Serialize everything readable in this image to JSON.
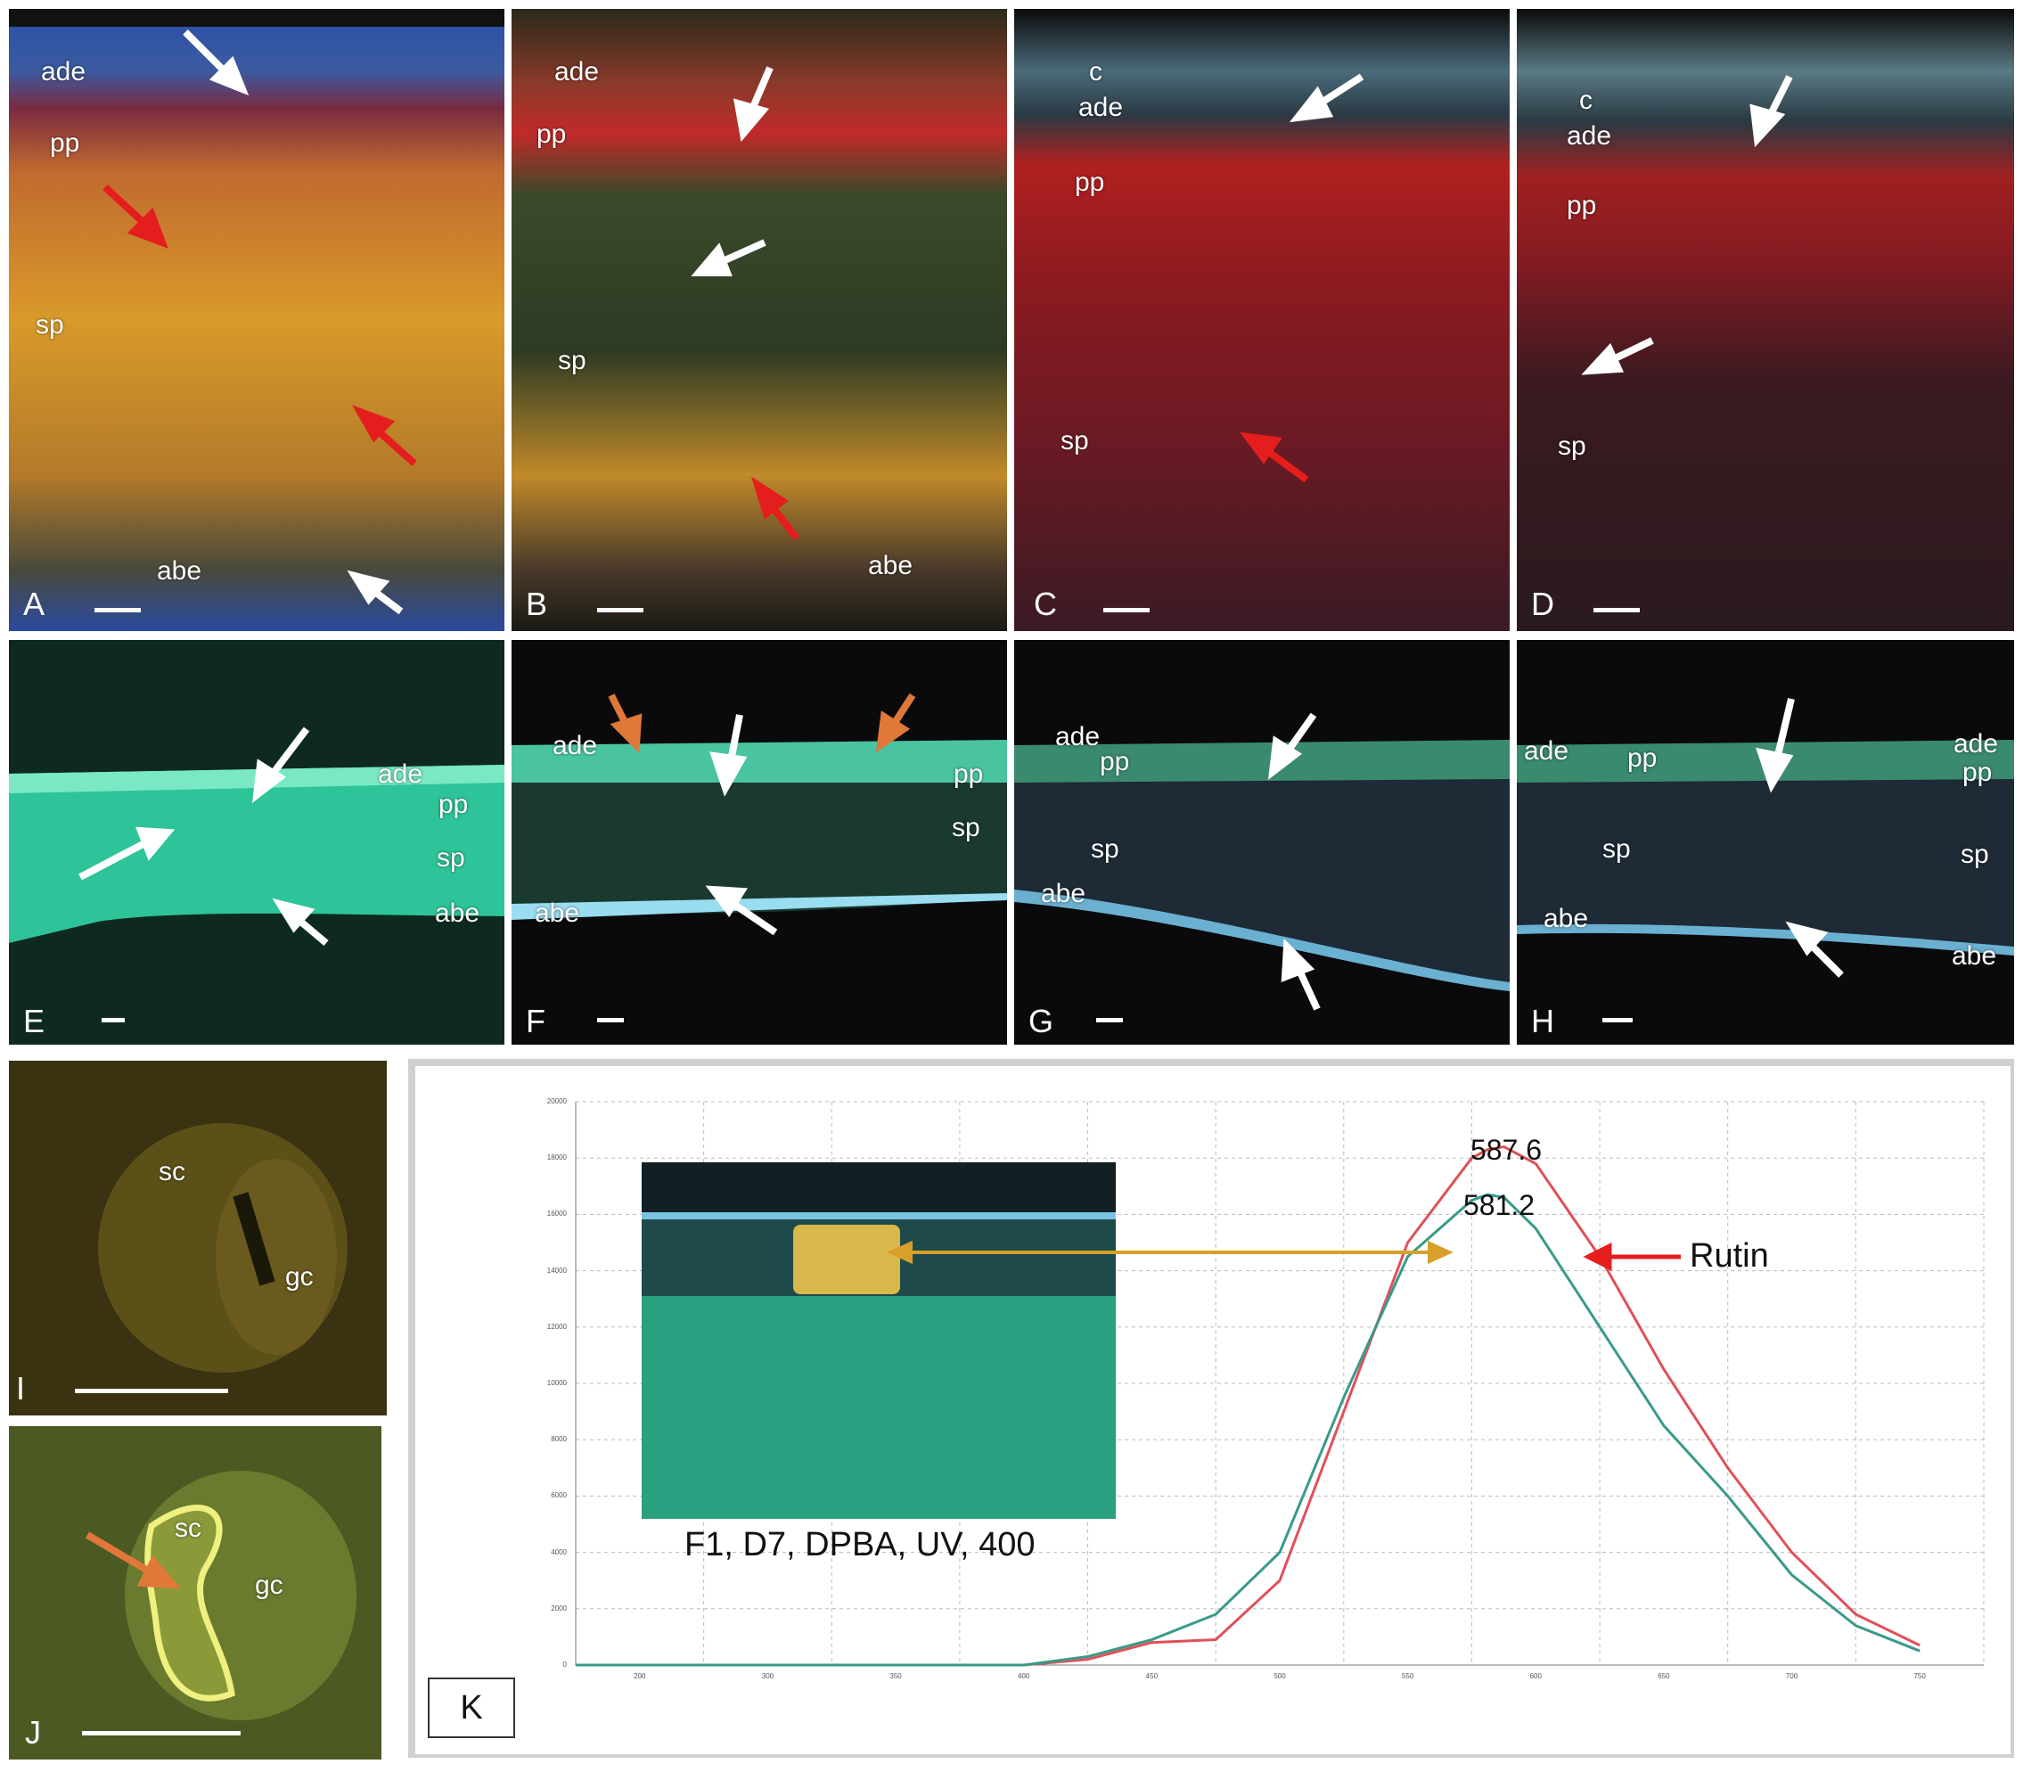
{
  "panels": {
    "A": {
      "label": "A",
      "tags": [
        "ade",
        "pp",
        "sp",
        "abe"
      ]
    },
    "B": {
      "label": "B",
      "tags": [
        "ade",
        "pp",
        "sp",
        "abe"
      ]
    },
    "C": {
      "label": "C",
      "tags": [
        "c",
        "ade",
        "pp",
        "sp"
      ]
    },
    "D": {
      "label": "D",
      "tags": [
        "c",
        "ade",
        "pp",
        "sp"
      ]
    },
    "E": {
      "label": "E",
      "tags": [
        "ade",
        "pp",
        "sp",
        "abe"
      ]
    },
    "F": {
      "label": "F",
      "tags": [
        "ade",
        "pp",
        "sp",
        "abe"
      ]
    },
    "G": {
      "label": "G",
      "tags": [
        "ade",
        "pp",
        "sp",
        "abe"
      ]
    },
    "H": {
      "label": "H",
      "tags": [
        "ade",
        "pp",
        "sp",
        "abe",
        "ade",
        "pp",
        "sp",
        "abe"
      ]
    },
    "I": {
      "label": "I",
      "tags": [
        "sc",
        "gc"
      ]
    },
    "J": {
      "label": "J",
      "tags": [
        "sc",
        "gc"
      ]
    }
  },
  "K": {
    "label": "K",
    "inset_caption": "F1, D7, DPBA, UV, 400",
    "compound_label": "Rutin",
    "peak_labels": [
      "587.6",
      "581.2"
    ],
    "yticks": [
      "20000",
      "18000",
      "16000",
      "14000",
      "12000",
      "10000",
      "8000",
      "6000",
      "4000",
      "2000",
      "0"
    ],
    "xticks": [
      "200",
      "300",
      "350",
      "400",
      "450",
      "500",
      "550",
      "600",
      "650",
      "700",
      "750"
    ]
  },
  "colors": {
    "red_series": "#e0505a",
    "teal_series": "#3a9a8a",
    "arrow_white": "#ffffff",
    "arrow_red": "#e41d1d",
    "arrow_orange": "#e0783a"
  },
  "chart_data": {
    "type": "line",
    "x": [
      400,
      425,
      450,
      475,
      500,
      525,
      550,
      575,
      581.2,
      587.6,
      600,
      625,
      650,
      675,
      700,
      725,
      750
    ],
    "series": [
      {
        "values": [
          0,
          200,
          800,
          900,
          3000,
          9000,
          15000,
          18000,
          18300,
          18400,
          17800,
          14500,
          10500,
          7000,
          4000,
          1800,
          700
        ]
      },
      {
        "values": [
          0,
          300,
          900,
          1800,
          4000,
          9500,
          14500,
          16500,
          16700,
          16600,
          15500,
          12000,
          8500,
          6000,
          3200,
          1400,
          500
        ]
      }
    ],
    "ylim": [
      0,
      20000
    ],
    "xlim": [
      225,
      775
    ]
  }
}
